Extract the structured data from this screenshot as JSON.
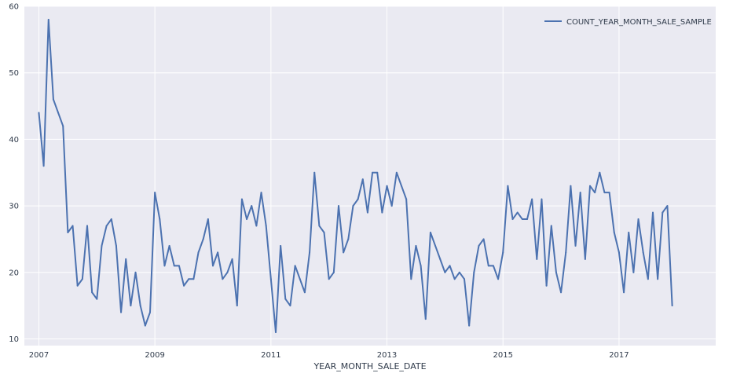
{
  "chart_data": {
    "type": "line",
    "title": "",
    "xlabel": "YEAR_MONTH_SALE_DATE",
    "ylabel": "",
    "xlim": [
      "2006-10",
      "2018-09"
    ],
    "ylim": [
      9,
      60
    ],
    "grid": true,
    "legend_position": "top-right",
    "background_color": "#eaeaf2",
    "grid_color": "#ffffff",
    "x_ticks": [
      "2007",
      "2009",
      "2011",
      "2013",
      "2015",
      "2017"
    ],
    "y_ticks": [
      "10",
      "20",
      "30",
      "40",
      "50",
      "60"
    ],
    "series": [
      {
        "name": "COUNT_YEAR_MONTH_SALE_SAMPLE",
        "color": "#4c72b0",
        "x": [
          "2007-01",
          "2007-02",
          "2007-03",
          "2007-04",
          "2007-05",
          "2007-06",
          "2007-07",
          "2007-08",
          "2007-09",
          "2007-10",
          "2007-11",
          "2007-12",
          "2008-01",
          "2008-02",
          "2008-03",
          "2008-04",
          "2008-05",
          "2008-06",
          "2008-07",
          "2008-08",
          "2008-09",
          "2008-10",
          "2008-11",
          "2008-12",
          "2009-01",
          "2009-02",
          "2009-03",
          "2009-04",
          "2009-05",
          "2009-06",
          "2009-07",
          "2009-08",
          "2009-09",
          "2009-10",
          "2009-11",
          "2009-12",
          "2010-01",
          "2010-02",
          "2010-03",
          "2010-04",
          "2010-05",
          "2010-06",
          "2010-07",
          "2010-08",
          "2010-09",
          "2010-10",
          "2010-11",
          "2010-12",
          "2011-01",
          "2011-02",
          "2011-03",
          "2011-04",
          "2011-05",
          "2011-06",
          "2011-07",
          "2011-08",
          "2011-09",
          "2011-10",
          "2011-11",
          "2011-12",
          "2012-01",
          "2012-02",
          "2012-03",
          "2012-04",
          "2012-05",
          "2012-06",
          "2012-07",
          "2012-08",
          "2012-09",
          "2012-10",
          "2012-11",
          "2012-12",
          "2013-01",
          "2013-02",
          "2013-03",
          "2013-04",
          "2013-05",
          "2013-06",
          "2013-07",
          "2013-08",
          "2013-09",
          "2013-10",
          "2013-11",
          "2013-12",
          "2014-01",
          "2014-02",
          "2014-03",
          "2014-04",
          "2014-05",
          "2014-06",
          "2014-07",
          "2014-08",
          "2014-09",
          "2014-10",
          "2014-11",
          "2014-12",
          "2015-01",
          "2015-02",
          "2015-03",
          "2015-04",
          "2015-05",
          "2015-06",
          "2015-07",
          "2015-08",
          "2015-09",
          "2015-10",
          "2015-11",
          "2015-12",
          "2016-01",
          "2016-02",
          "2016-03",
          "2016-04",
          "2016-05",
          "2016-06",
          "2016-07",
          "2016-08",
          "2016-09",
          "2016-10",
          "2016-11",
          "2016-12",
          "2017-01",
          "2017-02",
          "2017-03",
          "2017-04",
          "2017-05",
          "2017-06",
          "2017-07",
          "2017-08",
          "2017-09",
          "2017-10",
          "2017-11",
          "2017-12"
        ],
        "values": [
          44,
          36,
          58,
          46,
          44,
          42,
          26,
          27,
          18,
          19,
          27,
          17,
          16,
          24,
          27,
          28,
          24,
          14,
          22,
          15,
          20,
          15,
          12,
          14,
          32,
          28,
          21,
          24,
          21,
          21,
          18,
          19,
          19,
          23,
          25,
          28,
          21,
          23,
          19,
          20,
          22,
          15,
          31,
          28,
          30,
          27,
          32,
          27,
          19,
          11,
          24,
          16,
          15,
          21,
          19,
          17,
          23,
          35,
          27,
          26,
          19,
          20,
          30,
          23,
          25,
          30,
          31,
          34,
          29,
          35,
          35,
          29,
          33,
          30,
          35,
          33,
          31,
          19,
          24,
          21,
          13,
          26,
          24,
          22,
          20,
          21,
          19,
          20,
          19,
          12,
          20,
          24,
          25,
          21,
          21,
          19,
          23,
          33,
          28,
          29,
          28,
          28,
          31,
          22,
          31,
          18,
          27,
          20,
          17,
          23,
          33,
          24,
          32,
          22,
          33,
          32,
          35,
          32,
          32,
          26,
          23,
          17,
          26,
          20,
          28,
          23,
          19,
          29,
          19,
          29,
          30,
          15
        ]
      }
    ]
  }
}
